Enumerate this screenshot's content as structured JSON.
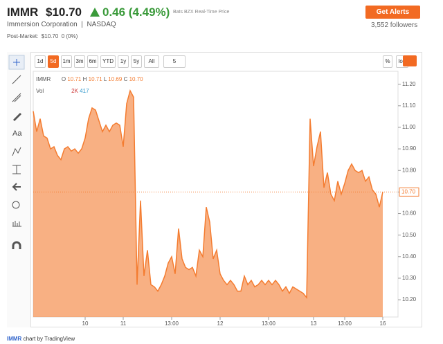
{
  "header": {
    "symbol": "IMMR",
    "price": "$10.70",
    "change": "0.46 (4.49%)",
    "source": "Bats BZX Real-Time Price",
    "company": "Immersion Corporation",
    "exchange": "NASDAQ",
    "post_market_label": "Post-Market:",
    "post_market_price": "$10.70",
    "post_market_change": "0 (0%)",
    "button": "Get Alerts",
    "followers": "3,552 followers"
  },
  "toolbar": {
    "buttons": [
      "1d",
      "5d",
      "1m",
      "3m",
      "6m",
      "YTD",
      "1y",
      "5y",
      "All"
    ],
    "active": "5d",
    "interval": "5",
    "percent": "%",
    "log": "log"
  },
  "legend": {
    "symbol": "IMMR",
    "o_label": "O",
    "o": "10.71",
    "h_label": "H",
    "h": "10.71",
    "l_label": "L",
    "l": "10.69",
    "c_label": "C",
    "c": "10.70",
    "vol_label": "Vol",
    "vol1": "2K",
    "vol2": "417"
  },
  "footer": {
    "link": "IMMR",
    "text": "chart by TradingView"
  },
  "chart_data": {
    "type": "area",
    "color": "#f47c30",
    "categories": [
      null,
      null,
      null,
      null,
      null,
      null,
      null,
      null,
      null,
      null,
      null,
      null,
      null,
      null,
      null,
      "10",
      null,
      null,
      null,
      null,
      null,
      null,
      null,
      null,
      null,
      null,
      "11",
      null,
      null,
      null,
      null,
      null,
      null,
      null,
      null,
      null,
      null,
      null,
      null,
      null,
      "13:00",
      null,
      null,
      null,
      null,
      null,
      null,
      null,
      null,
      null,
      null,
      null,
      null,
      null,
      "12",
      null,
      null,
      null,
      null,
      null,
      null,
      null,
      null,
      null,
      null,
      null,
      null,
      null,
      "13:00",
      null,
      null,
      null,
      null,
      null,
      null,
      null,
      null,
      null,
      null,
      null,
      null,
      "13",
      null,
      null,
      null,
      null,
      null,
      null,
      null,
      null,
      "13:00",
      null,
      null,
      null,
      null,
      null,
      null,
      null,
      null,
      null,
      null,
      "16"
    ],
    "values": [
      11.075,
      10.98,
      11.04,
      10.96,
      10.95,
      10.9,
      10.91,
      10.87,
      10.85,
      10.9,
      10.91,
      10.89,
      10.9,
      10.88,
      10.9,
      10.95,
      11.04,
      11.09,
      11.08,
      11.03,
      10.98,
      11.01,
      10.98,
      11.01,
      11.02,
      11.01,
      10.91,
      11.11,
      11.17,
      11.14,
      10.27,
      10.66,
      10.31,
      10.43,
      10.27,
      10.26,
      10.24,
      10.27,
      10.31,
      10.37,
      10.4,
      10.32,
      10.53,
      10.39,
      10.35,
      10.34,
      10.35,
      10.31,
      10.43,
      10.4,
      10.63,
      10.56,
      10.39,
      10.43,
      10.32,
      10.29,
      10.27,
      10.29,
      10.27,
      10.24,
      10.24,
      10.31,
      10.27,
      10.29,
      10.26,
      10.27,
      10.29,
      10.27,
      10.29,
      10.27,
      10.29,
      10.27,
      10.24,
      10.26,
      10.23,
      10.26,
      10.25,
      10.24,
      10.23,
      10.21,
      11.04,
      10.82,
      10.91,
      10.98,
      10.72,
      10.79,
      10.69,
      10.66,
      10.75,
      10.69,
      10.74,
      10.8,
      10.83,
      10.8,
      10.79,
      10.8,
      10.75,
      10.77,
      10.71,
      10.69,
      10.63,
      10.7
    ],
    "ylim": [
      10.12,
      11.26
    ],
    "yticks": [
      {
        "value": 10.2,
        "label": "10.20"
      },
      {
        "value": 10.3,
        "label": "10.30"
      },
      {
        "value": 10.4,
        "label": "10.40"
      },
      {
        "value": 10.5,
        "label": "10.50"
      },
      {
        "value": 10.6,
        "label": "10.60"
      },
      {
        "value": 10.7,
        "label": "10.70"
      },
      {
        "value": 10.8,
        "label": "10.80"
      },
      {
        "value": 10.9,
        "label": "10.90"
      },
      {
        "value": 11.0,
        "label": "11.00"
      },
      {
        "value": 11.1,
        "label": "11.10"
      },
      {
        "value": 11.2,
        "label": "11.20"
      }
    ],
    "price_line": {
      "value": 10.7,
      "label": "10.70"
    }
  }
}
